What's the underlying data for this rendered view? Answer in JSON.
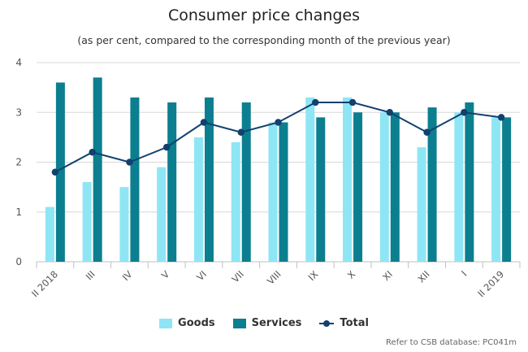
{
  "chart_data": {
    "type": "bar",
    "title": "Consumer price changes",
    "subtitle": "(as per cent, compared to the corresponding month of the previous year)",
    "categories": [
      "II 2018",
      "III",
      "IV",
      "V",
      "VI",
      "VII",
      "VIII",
      "IX",
      "X",
      "XI",
      "XII",
      "I",
      "II 2019"
    ],
    "series": [
      {
        "name": "Goods",
        "type": "bar",
        "color": "#8ee6f4",
        "values": [
          1.1,
          1.6,
          1.5,
          1.9,
          2.5,
          2.4,
          2.8,
          3.3,
          3.3,
          3.0,
          2.3,
          3.0,
          2.9
        ]
      },
      {
        "name": "Services",
        "type": "bar",
        "color": "#0b7f8f",
        "values": [
          3.6,
          3.7,
          3.3,
          3.2,
          3.3,
          3.2,
          2.8,
          2.9,
          3.0,
          3.0,
          3.1,
          3.2,
          2.9
        ]
      },
      {
        "name": "Total",
        "type": "line",
        "color": "#11416e",
        "values": [
          1.8,
          2.2,
          2.0,
          2.3,
          2.8,
          2.6,
          2.8,
          3.2,
          3.2,
          3.0,
          2.6,
          3.0,
          2.9
        ]
      }
    ],
    "ylim": [
      0,
      4
    ],
    "yticks": [
      0,
      1,
      2,
      3,
      4
    ],
    "grid": true,
    "legend": "bottom-center",
    "credit": "Refer to CSB database: PC041m"
  }
}
